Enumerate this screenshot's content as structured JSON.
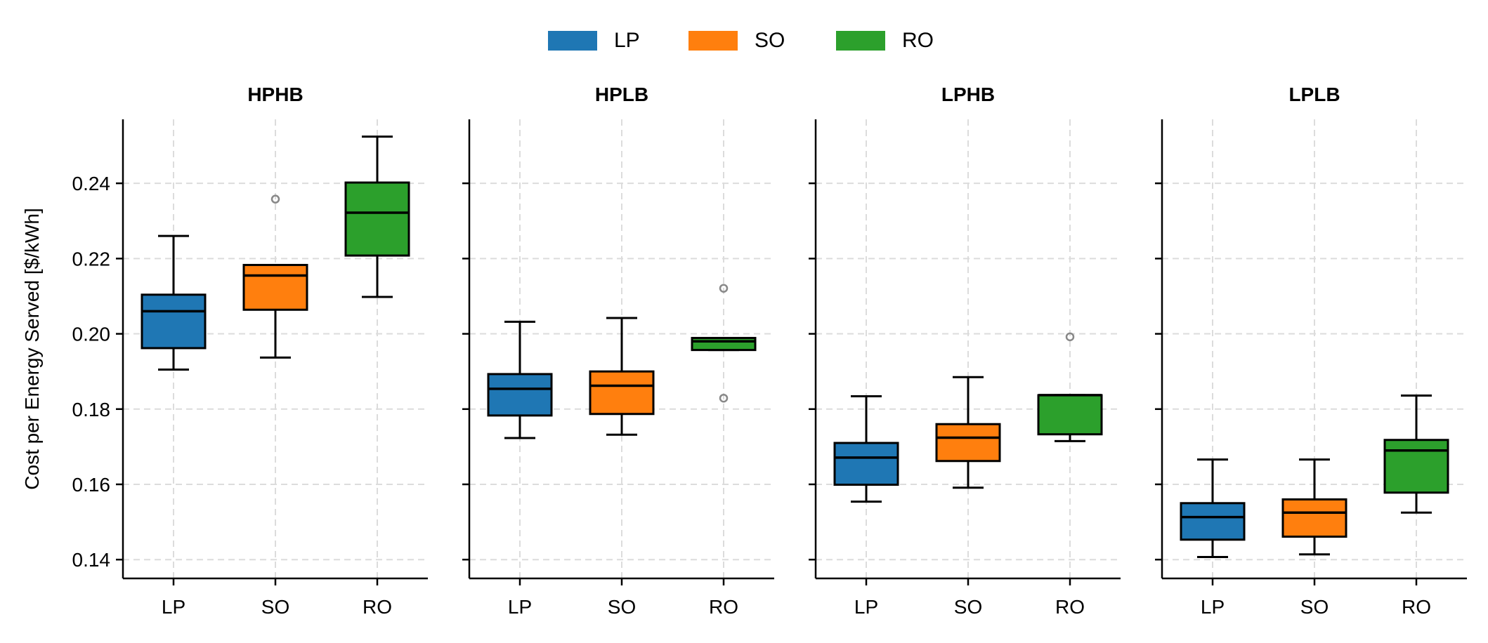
{
  "legend": {
    "items": [
      {
        "label": "LP",
        "color": "#1f77b4"
      },
      {
        "label": "SO",
        "color": "#ff7f0e"
      },
      {
        "label": "RO",
        "color": "#2ca02c"
      }
    ]
  },
  "chart_data": {
    "type": "boxplot",
    "ylabel": "Cost per Energy Served [$/kWh]",
    "ylim": [
      0.135,
      0.257
    ],
    "yticks": [
      0.14,
      0.16,
      0.18,
      0.2,
      0.22,
      0.24
    ],
    "ytick_labels": [
      "0.14",
      "0.16",
      "0.18",
      "0.20",
      "0.22",
      "0.24"
    ],
    "grid": true,
    "legend_position": "top-center",
    "categories": [
      "LP",
      "SO",
      "RO"
    ],
    "colors": {
      "LP": "#1f77b4",
      "SO": "#ff7f0e",
      "RO": "#2ca02c"
    },
    "panels": [
      {
        "title": "HPHB",
        "boxes": [
          {
            "name": "LP",
            "whisker_low": 0.1905,
            "q1": 0.1962,
            "median": 0.206,
            "q3": 0.2104,
            "whisker_high": 0.226,
            "outliers": []
          },
          {
            "name": "SO",
            "whisker_low": 0.1937,
            "q1": 0.2064,
            "median": 0.2155,
            "q3": 0.2183,
            "whisker_high": 0.2183,
            "outliers": [
              0.2358
            ]
          },
          {
            "name": "RO",
            "whisker_low": 0.2098,
            "q1": 0.2208,
            "median": 0.2322,
            "q3": 0.2402,
            "whisker_high": 0.2524,
            "outliers": []
          }
        ]
      },
      {
        "title": "HPLB",
        "boxes": [
          {
            "name": "LP",
            "whisker_low": 0.1723,
            "q1": 0.1783,
            "median": 0.1854,
            "q3": 0.1893,
            "whisker_high": 0.2032,
            "outliers": []
          },
          {
            "name": "SO",
            "whisker_low": 0.1732,
            "q1": 0.1787,
            "median": 0.1862,
            "q3": 0.19,
            "whisker_high": 0.2042,
            "outliers": []
          },
          {
            "name": "RO",
            "whisker_low": 0.1957,
            "q1": 0.1957,
            "median": 0.198,
            "q3": 0.1989,
            "whisker_high": 0.1989,
            "outliers": [
              0.2121,
              0.1829
            ]
          }
        ]
      },
      {
        "title": "LPHB",
        "boxes": [
          {
            "name": "LP",
            "whisker_low": 0.1554,
            "q1": 0.1599,
            "median": 0.1671,
            "q3": 0.171,
            "whisker_high": 0.1834,
            "outliers": []
          },
          {
            "name": "SO",
            "whisker_low": 0.1591,
            "q1": 0.1662,
            "median": 0.1724,
            "q3": 0.176,
            "whisker_high": 0.1885,
            "outliers": []
          },
          {
            "name": "RO",
            "whisker_low": 0.1715,
            "q1": 0.1733,
            "median": 0.1837,
            "q3": 0.1837,
            "whisker_high": 0.1837,
            "outliers": [
              0.1992
            ]
          }
        ]
      },
      {
        "title": "LPLB",
        "boxes": [
          {
            "name": "LP",
            "whisker_low": 0.1407,
            "q1": 0.1453,
            "median": 0.1513,
            "q3": 0.155,
            "whisker_high": 0.1666,
            "outliers": []
          },
          {
            "name": "SO",
            "whisker_low": 0.1414,
            "q1": 0.1461,
            "median": 0.1525,
            "q3": 0.156,
            "whisker_high": 0.1666,
            "outliers": []
          },
          {
            "name": "RO",
            "whisker_low": 0.1525,
            "q1": 0.1578,
            "median": 0.169,
            "q3": 0.1718,
            "whisker_high": 0.1836,
            "outliers": []
          }
        ]
      }
    ]
  }
}
